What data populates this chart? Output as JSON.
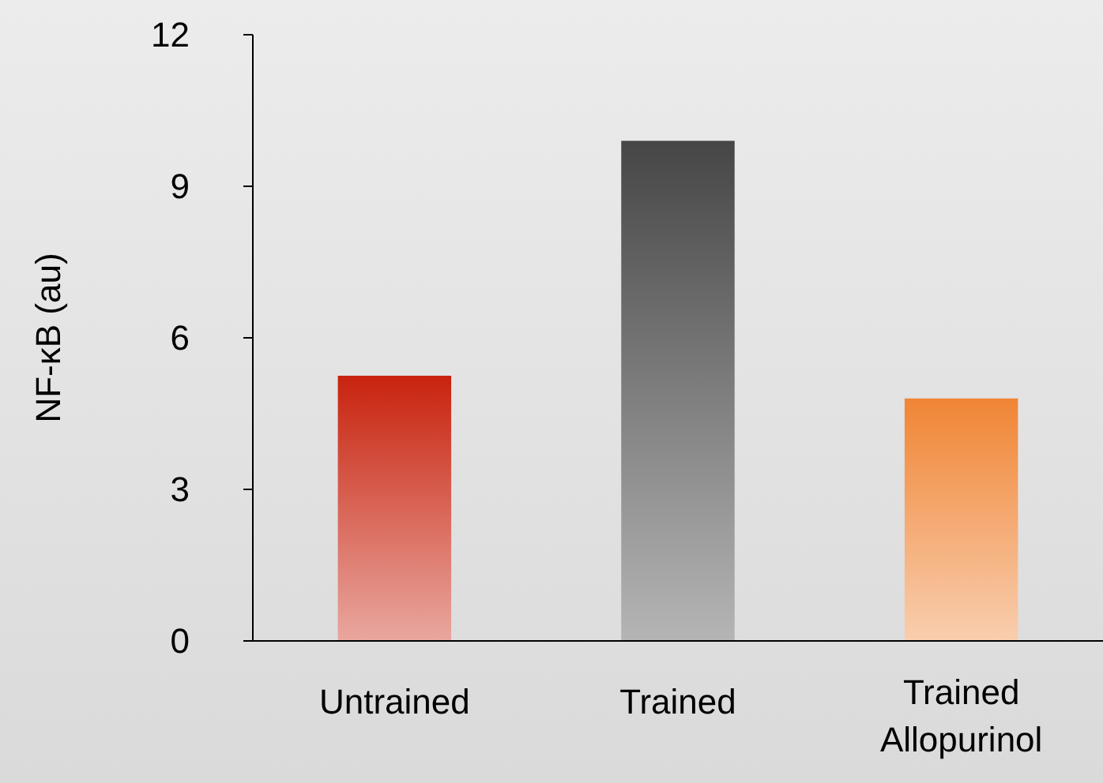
{
  "chart_data": {
    "type": "bar",
    "ylabel": "NF-κB (au)",
    "categories": [
      "Untrained",
      "Trained",
      "Trained Allopurinol"
    ],
    "values": [
      5.25,
      9.9,
      4.8
    ],
    "colors": [
      "#c8230e",
      "#464646",
      "#f08535"
    ],
    "ylim": [
      0,
      12
    ],
    "yticks": [
      0,
      3,
      6,
      9,
      12
    ],
    "grid": false
  }
}
